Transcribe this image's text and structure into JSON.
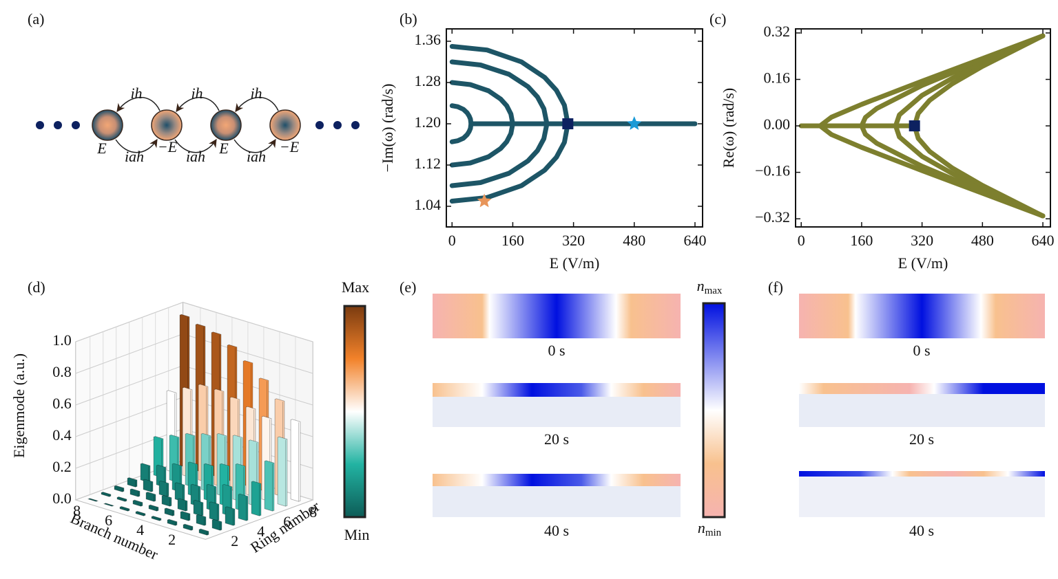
{
  "diagram": {
    "label": "(a)",
    "upper_couplings": [
      "ih",
      "ih",
      "ih"
    ],
    "lower_couplings": [
      "iah",
      "iah",
      "iah"
    ],
    "site_energies": [
      "E",
      "−E",
      "E",
      "−E"
    ]
  },
  "chart_data": [
    {
      "type": "line",
      "label": "(b)",
      "xlabel": "E (V/m)",
      "ylabel": "−Im(ω) (rad/s)",
      "xlim": [
        -15,
        660
      ],
      "xticks": [
        0,
        160,
        320,
        480,
        640
      ],
      "ylim": [
        1.0,
        1.384
      ],
      "yticks": [
        {
          "value": 1.04,
          "label": "1.04"
        },
        {
          "value": 1.12,
          "label": "1.12"
        },
        {
          "value": 1.2,
          "label": "1.20"
        },
        {
          "value": 1.28,
          "label": "1.28"
        },
        {
          "value": 1.36,
          "label": "1.36"
        }
      ],
      "series": [
        {
          "color": "#1d5566",
          "x": [
            0,
            15,
            30,
            40,
            45,
            48.5,
            50,
            48.5,
            45,
            40,
            30,
            15,
            0
          ],
          "values": [
            1.235,
            1.233,
            1.228,
            1.221,
            1.215,
            1.209,
            1.2,
            1.191,
            1.185,
            1.179,
            1.172,
            1.167,
            1.165
          ]
        },
        {
          "color": "#1d5566",
          "x": [
            0,
            48,
            96,
            128,
            144,
            155,
            160,
            155,
            144,
            128,
            96,
            48,
            0
          ],
          "values": [
            1.28,
            1.276,
            1.264,
            1.248,
            1.235,
            1.219,
            1.2,
            1.181,
            1.165,
            1.152,
            1.136,
            1.124,
            1.12
          ]
        },
        {
          "color": "#1d5566",
          "x": [
            0,
            75,
            150,
            200,
            225,
            242,
            250,
            242,
            225,
            200,
            150,
            75,
            0
          ],
          "values": [
            1.32,
            1.314,
            1.296,
            1.272,
            1.252,
            1.229,
            1.2,
            1.171,
            1.148,
            1.128,
            1.104,
            1.086,
            1.08
          ]
        },
        {
          "color": "#1d5566",
          "x": [
            0,
            92,
            183,
            244,
            275,
            296,
            305,
            296,
            275,
            244,
            183,
            92,
            0
          ],
          "values": [
            1.35,
            1.343,
            1.32,
            1.29,
            1.265,
            1.236,
            1.2,
            1.164,
            1.135,
            1.11,
            1.08,
            1.057,
            1.05
          ]
        },
        {
          "color": "#1d5566",
          "x": [
            50,
            640
          ],
          "values": [
            1.2,
            1.2
          ]
        }
      ],
      "markers": [
        {
          "shape": "square",
          "color": "#0d2160",
          "x": 305,
          "value": 1.2
        },
        {
          "shape": "star",
          "color": "#1a9ad6",
          "x": 480,
          "value": 1.2
        },
        {
          "shape": "star",
          "color": "#e8955a",
          "x": 85,
          "value": 1.05
        }
      ]
    },
    {
      "type": "line",
      "label": "(c)",
      "xlabel": "E (V/m)",
      "ylabel": "Re(ω) (rad/s)",
      "xlim": [
        -15,
        660
      ],
      "xticks": [
        0,
        160,
        320,
        480,
        640
      ],
      "ylim": [
        -0.348,
        0.334
      ],
      "yticks": [
        {
          "value": -0.32,
          "label": "−0.32"
        },
        {
          "value": -0.16,
          "label": "−0.16"
        },
        {
          "value": 0,
          "label": "0.00"
        },
        {
          "value": 0.16,
          "label": "0.16"
        },
        {
          "value": 0.32,
          "label": "0.32"
        }
      ],
      "series": [
        {
          "color": "#7d7f2e",
          "x": [
            640,
            480,
            320,
            160,
            80,
            50,
            80,
            160,
            320,
            480,
            640
          ],
          "values": [
            0.31,
            0.232,
            0.154,
            0.074,
            0.03,
            0,
            -0.03,
            -0.074,
            -0.154,
            -0.232,
            -0.31
          ]
        },
        {
          "color": "#7d7f2e",
          "x": [
            640,
            480,
            320,
            200,
            170,
            160,
            170,
            200,
            320,
            480,
            640
          ],
          "values": [
            0.31,
            0.226,
            0.139,
            0.06,
            0.029,
            0,
            -0.029,
            -0.06,
            -0.139,
            -0.226,
            -0.31
          ]
        },
        {
          "color": "#7d7f2e",
          "x": [
            640,
            480,
            400,
            320,
            260,
            250,
            260,
            320,
            400,
            480,
            640
          ],
          "values": [
            0.31,
            0.216,
            0.164,
            0.105,
            0.038,
            0,
            -0.038,
            -0.105,
            -0.164,
            -0.216,
            -0.31
          ]
        },
        {
          "color": "#7d7f2e",
          "x": [
            640,
            480,
            400,
            340,
            310,
            300,
            310,
            340,
            400,
            480,
            640
          ],
          "values": [
            0.31,
            0.205,
            0.145,
            0.088,
            0.043,
            0,
            -0.043,
            -0.088,
            -0.145,
            -0.205,
            -0.31
          ]
        },
        {
          "color": "#7d7f2e",
          "x": [
            0,
            300
          ],
          "values": [
            0,
            0
          ]
        }
      ],
      "markers": [
        {
          "shape": "square",
          "color": "#0d2160",
          "x": 300,
          "value": 0
        }
      ]
    },
    {
      "type": "bar3d",
      "label": "(d)",
      "xlabel": "Branch number",
      "ylabel": "Ring number",
      "zlabel": "Eigenmode (a.u.)",
      "zlim": [
        0,
        1
      ],
      "zticks": [
        {
          "value": 0,
          "label": "0.0"
        },
        {
          "value": 0.2,
          "label": "0.2"
        },
        {
          "value": 0.4,
          "label": "0.4"
        },
        {
          "value": 0.6,
          "label": "0.6"
        },
        {
          "value": 0.8,
          "label": "0.8"
        },
        {
          "value": 1,
          "label": "1.0"
        }
      ],
      "branch_ticks": [
        2,
        4,
        6,
        8
      ],
      "ring_ticks": [
        2,
        4,
        6,
        8
      ],
      "colormap": [
        "#0d5c57",
        "#22b3a2",
        "#ffffff",
        "#f2822a",
        "#7a3b10"
      ],
      "colorbar": {
        "max": "Max",
        "min": "Min"
      },
      "values": [
        [
          0.02,
          0.05,
          0.1,
          0.15,
          0.2,
          0.3,
          0.42,
          0.5
        ],
        [
          0.02,
          0.05,
          0.1,
          0.18,
          0.28,
          0.4,
          0.52,
          0.6
        ],
        [
          0.02,
          0.04,
          0.08,
          0.15,
          0.25,
          0.4,
          0.55,
          0.7
        ],
        [
          0.01,
          0.03,
          0.06,
          0.12,
          0.22,
          0.38,
          0.58,
          0.78
        ],
        [
          0.01,
          0.02,
          0.05,
          0.1,
          0.2,
          0.35,
          0.6,
          0.85
        ],
        [
          0.01,
          0.02,
          0.04,
          0.08,
          0.16,
          0.32,
          0.6,
          0.9
        ],
        [
          0,
          0.01,
          0.03,
          0.06,
          0.12,
          0.28,
          0.55,
          0.92
        ],
        [
          0,
          0.01,
          0.02,
          0.04,
          0.1,
          0.24,
          0.5,
          0.95
        ]
      ]
    }
  ],
  "snapshots": [
    {
      "label": "(e)",
      "times": [
        "0 s",
        "20 s",
        "40 s"
      ]
    },
    {
      "label": "(f)",
      "times": [
        "0 s",
        "20 s",
        "40 s"
      ]
    }
  ],
  "index_colorbar": {
    "symbol": "n",
    "max": "max",
    "min": "min"
  }
}
